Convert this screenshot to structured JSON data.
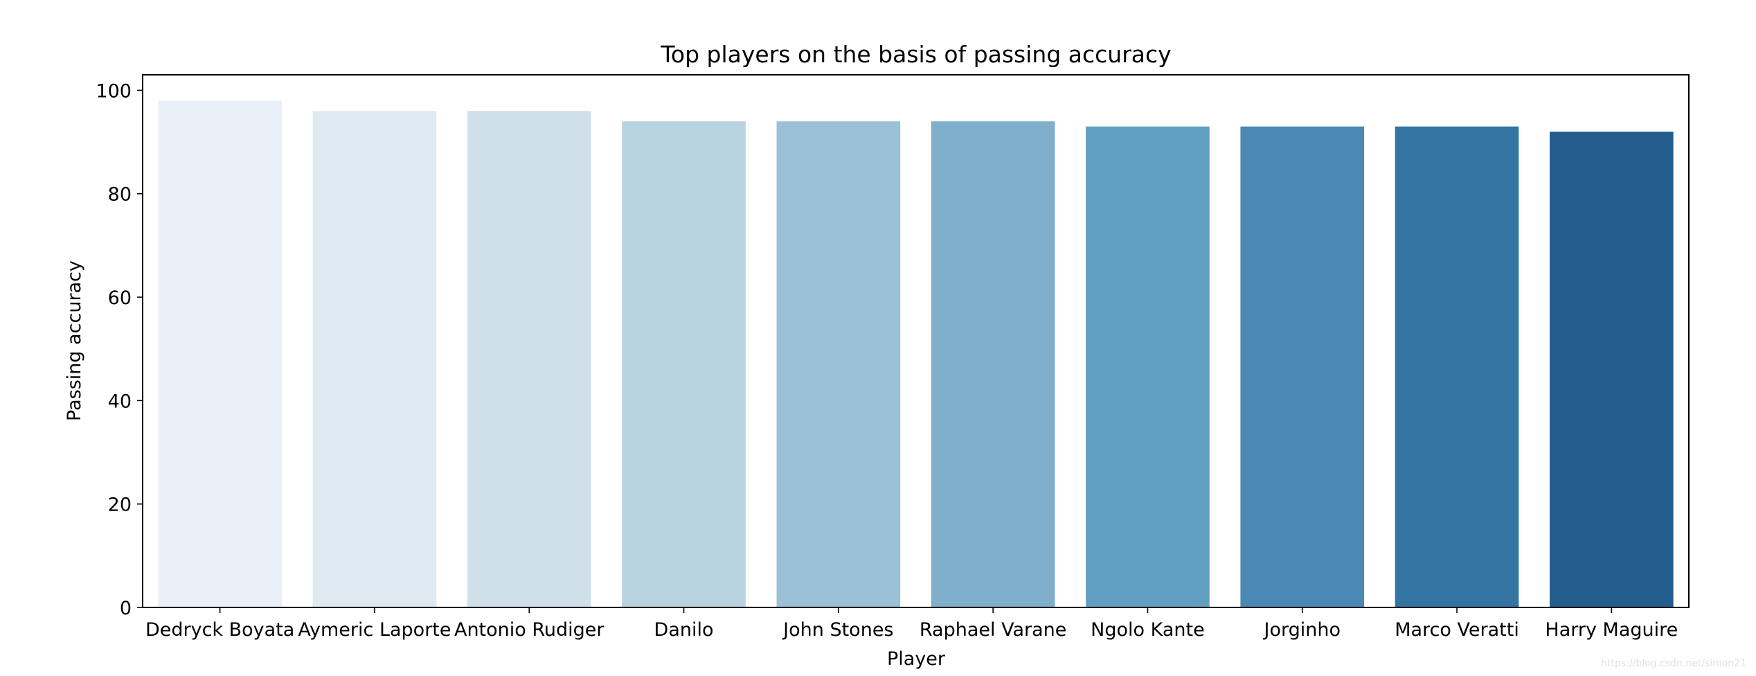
{
  "chart_data": {
    "type": "bar",
    "title": "Top players on the basis of passing accuracy",
    "xlabel": "Player",
    "ylabel": "Passing accuracy",
    "categories": [
      "Dedryck Boyata",
      "Aymeric Laporte",
      "Antonio Rudiger",
      "Danilo",
      "John Stones",
      "Raphael Varane",
      "Ngolo Kante",
      "Jorginho",
      "Marco Veratti",
      "Harry Maguire"
    ],
    "values": [
      98,
      96,
      96,
      94,
      94,
      94,
      93,
      93,
      93,
      92
    ],
    "colors": [
      "#eaf0f7",
      "#dfe9f2",
      "#cfe0eb",
      "#b8d4e0",
      "#9bc1d6",
      "#7fafca",
      "#62a0c2",
      "#4b89b4",
      "#3374a3",
      "#235d8d"
    ],
    "ylim": [
      0,
      103
    ],
    "yticks": [
      "0",
      "20",
      "40",
      "60",
      "80",
      "100"
    ],
    "grid": false,
    "legend": "none"
  },
  "watermark": "https://blog.csdn.net/simon21"
}
